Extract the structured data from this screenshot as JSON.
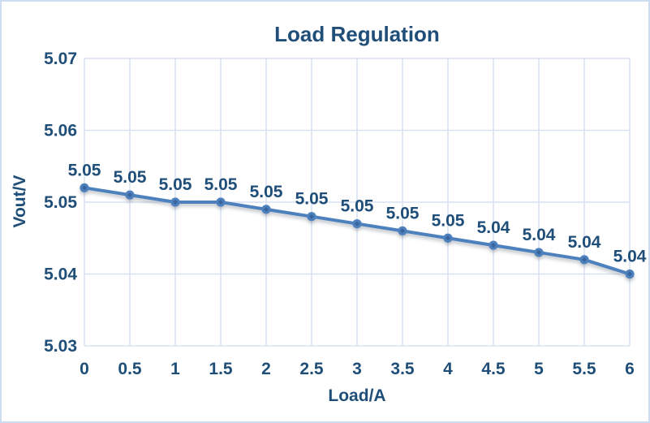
{
  "chart_data": {
    "type": "line",
    "title": "Load Regulation",
    "xlabel": "Load/A",
    "ylabel": "Vout/V",
    "x": [
      0,
      0.5,
      1,
      1.5,
      2,
      2.5,
      3,
      3.5,
      4,
      4.5,
      5,
      5.5,
      6
    ],
    "x_tick_labels": [
      "0",
      "0.5",
      "1",
      "1.5",
      "2",
      "2.5",
      "3",
      "3.5",
      "4",
      "4.5",
      "5",
      "5.5",
      "6"
    ],
    "series": [
      {
        "name": "Vout",
        "values": [
          5.052,
          5.051,
          5.05,
          5.05,
          5.049,
          5.048,
          5.047,
          5.046,
          5.045,
          5.044,
          5.043,
          5.042,
          5.04
        ],
        "data_labels": [
          "5.05",
          "5.05",
          "5.05",
          "5.05",
          "5.05",
          "5.05",
          "5.05",
          "5.05",
          "5.05",
          "5.04",
          "5.04",
          "5.04",
          "5.04"
        ]
      }
    ],
    "ylim": [
      5.03,
      5.07
    ],
    "yticks": [
      5.03,
      5.04,
      5.05,
      5.06,
      5.07
    ],
    "y_tick_labels": [
      "5.03",
      "5.04",
      "5.05",
      "5.06",
      "5.07"
    ],
    "xlim": [
      0,
      6
    ],
    "grid": true,
    "legend_position": "none",
    "colors": {
      "line": "#4E81BD",
      "marker": "#4E81BD",
      "marker_inner": "#38659E",
      "text": "#1F4E79",
      "gridline": "#D9E2F1",
      "border": "#CDDCF0",
      "background": "#FFFFFF"
    }
  }
}
